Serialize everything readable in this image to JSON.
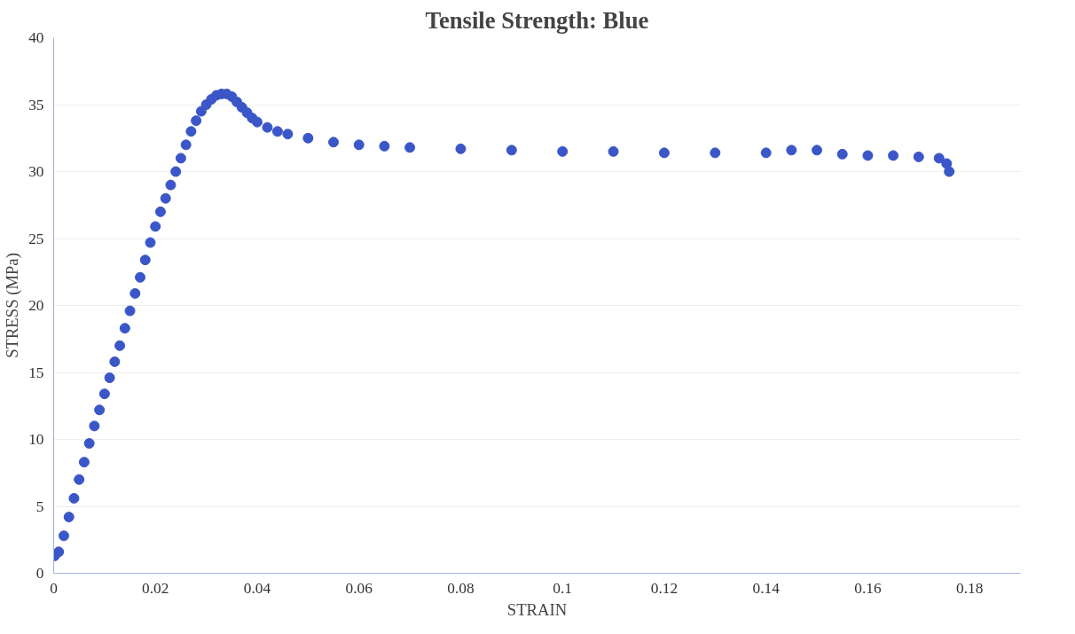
{
  "chart_data": {
    "type": "scatter",
    "title": "Tensile Strength: Blue",
    "xlabel": "STRAIN",
    "ylabel": "STRESS (MPa)",
    "x": [
      0.0002,
      0.001,
      0.002,
      0.003,
      0.004,
      0.005,
      0.006,
      0.007,
      0.008,
      0.009,
      0.01,
      0.011,
      0.012,
      0.013,
      0.014,
      0.015,
      0.016,
      0.017,
      0.018,
      0.019,
      0.02,
      0.021,
      0.022,
      0.023,
      0.024,
      0.025,
      0.026,
      0.027,
      0.028,
      0.029,
      0.03,
      0.031,
      0.032,
      0.033,
      0.034,
      0.035,
      0.036,
      0.037,
      0.038,
      0.039,
      0.04,
      0.042,
      0.044,
      0.046,
      0.05,
      0.055,
      0.06,
      0.065,
      0.07,
      0.08,
      0.09,
      0.1,
      0.11,
      0.12,
      0.13,
      0.14,
      0.145,
      0.15,
      0.155,
      0.16,
      0.165,
      0.17,
      0.174,
      0.1755,
      0.176
    ],
    "series": [
      {
        "color": "#3a56c8",
        "values": [
          1.3,
          1.6,
          2.8,
          4.2,
          5.6,
          7.0,
          8.3,
          9.7,
          11.0,
          12.2,
          13.4,
          14.6,
          15.8,
          17.0,
          18.3,
          19.6,
          20.9,
          22.1,
          23.4,
          24.7,
          25.9,
          27.0,
          28.0,
          29.0,
          30.0,
          31.0,
          32.0,
          33.0,
          33.8,
          34.5,
          35.0,
          35.4,
          35.7,
          35.8,
          35.8,
          35.6,
          35.2,
          34.8,
          34.4,
          34.0,
          33.7,
          33.3,
          33.0,
          32.8,
          32.5,
          32.2,
          32.0,
          31.9,
          31.8,
          31.7,
          31.6,
          31.5,
          31.5,
          31.4,
          31.4,
          31.4,
          31.6,
          31.6,
          31.3,
          31.2,
          31.2,
          31.1,
          31.0,
          30.6,
          30.0
        ]
      }
    ],
    "xlim": [
      0,
      0.19
    ],
    "ylim": [
      0,
      40
    ],
    "xticks": [
      0,
      0.02,
      0.04,
      0.06,
      0.08,
      0.1,
      0.12,
      0.14,
      0.16,
      0.18
    ],
    "yticks": [
      0,
      5,
      10,
      15,
      20,
      25,
      30,
      35,
      40
    ],
    "grid": "y",
    "marker": "circle"
  }
}
